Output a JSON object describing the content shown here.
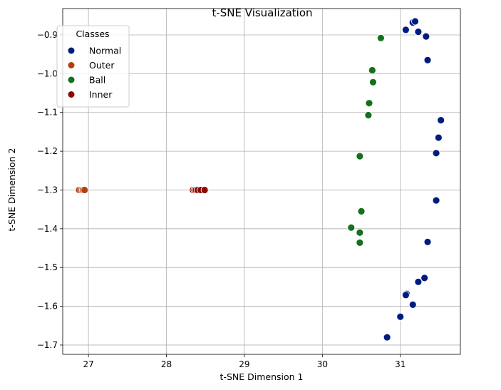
{
  "chart_data": {
    "type": "scatter",
    "title": "t-SNE Visualization",
    "xlabel": "t-SNE Dimension 1",
    "ylabel": "t-SNE Dimension 2",
    "xlim": [
      26.67,
      31.77
    ],
    "ylim": [
      -1.724,
      -0.832
    ],
    "xticks": [
      27,
      28,
      29,
      30,
      31
    ],
    "xtick_labels": [
      "27",
      "28",
      "29",
      "30",
      "31"
    ],
    "yticks": [
      -0.9,
      -1.0,
      -1.1,
      -1.2,
      -1.3,
      -1.4,
      -1.5,
      -1.6,
      -1.7
    ],
    "ytick_labels": [
      "−0.9",
      "−1.0",
      "−1.1",
      "−1.2",
      "−1.3",
      "−1.4",
      "−1.5",
      "−1.6",
      "−1.7"
    ],
    "grid": true,
    "legend": {
      "title": "Classes",
      "placement": "top-left"
    },
    "series": [
      {
        "name": "Normal",
        "color": "#001c7f",
        "points": [
          [
            31.16,
            -0.868
          ],
          [
            31.19,
            -0.865
          ],
          [
            31.07,
            -0.887
          ],
          [
            31.23,
            -0.892
          ],
          [
            31.33,
            -0.904
          ],
          [
            31.35,
            -0.965
          ],
          [
            31.52,
            -1.12
          ],
          [
            31.49,
            -1.165
          ],
          [
            31.46,
            -1.205
          ],
          [
            31.46,
            -1.327
          ],
          [
            31.35,
            -1.434
          ],
          [
            31.31,
            -1.527
          ],
          [
            31.23,
            -1.537
          ],
          [
            31.08,
            -1.568
          ],
          [
            31.07,
            -1.571
          ],
          [
            31.16,
            -1.596
          ],
          [
            31.0,
            -1.627
          ],
          [
            30.83,
            -1.68
          ]
        ]
      },
      {
        "name": "Outer",
        "color": "#b1400d",
        "points": [
          [
            26.88,
            -1.3
          ],
          [
            26.91,
            -1.3
          ],
          [
            26.93,
            -1.3
          ],
          [
            26.95,
            -1.3
          ]
        ]
      },
      {
        "name": "Ball",
        "color": "#12711c",
        "points": [
          [
            30.75,
            -0.908
          ],
          [
            30.64,
            -0.991
          ],
          [
            30.65,
            -1.022
          ],
          [
            30.6,
            -1.076
          ],
          [
            30.59,
            -1.107
          ],
          [
            30.48,
            -1.213
          ],
          [
            30.5,
            -1.355
          ],
          [
            30.37,
            -1.397
          ],
          [
            30.48,
            -1.41
          ],
          [
            30.48,
            -1.436
          ]
        ]
      },
      {
        "name": "Inner",
        "color": "#8c0800",
        "points": [
          [
            28.34,
            -1.3
          ],
          [
            28.36,
            -1.3
          ],
          [
            28.38,
            -1.3
          ],
          [
            28.4,
            -1.3
          ],
          [
            28.44,
            -1.3
          ],
          [
            28.49,
            -1.3
          ]
        ]
      }
    ]
  }
}
